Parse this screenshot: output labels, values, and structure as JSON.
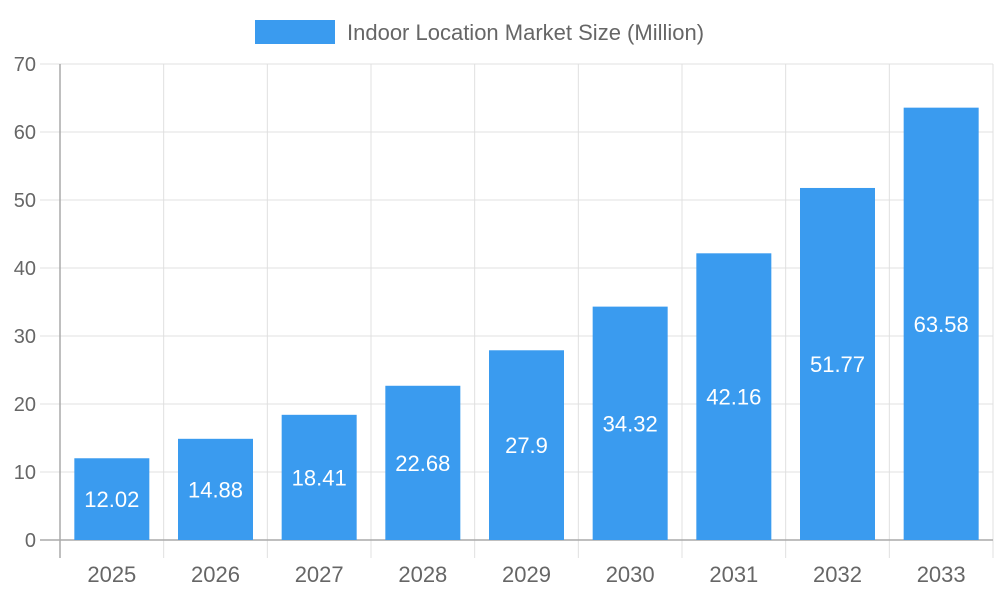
{
  "chart_data": {
    "type": "bar",
    "title": "",
    "xlabel": "",
    "ylabel": "",
    "categories": [
      "2025",
      "2026",
      "2027",
      "2028",
      "2029",
      "2030",
      "2031",
      "2032",
      "2033"
    ],
    "series": [
      {
        "name": "Indoor Location Market Size (Million)",
        "values": [
          12.02,
          14.88,
          18.41,
          22.68,
          27.9,
          34.32,
          42.16,
          51.77,
          63.58
        ],
        "color": "#3a9bef"
      }
    ],
    "ylim": [
      0,
      70
    ],
    "yticks": [
      0,
      10,
      20,
      30,
      40,
      50,
      60,
      70
    ],
    "grid": true,
    "legend": "top-center",
    "data_labels": true
  }
}
